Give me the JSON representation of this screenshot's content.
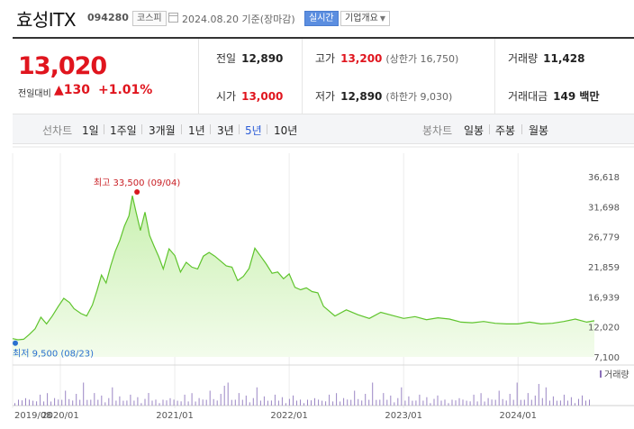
{
  "header": {
    "name": "효성ITX",
    "code": "094280",
    "market": "코스피",
    "date": "2024.08.20 기준(장마감)",
    "realtime": "실시간",
    "overview": "기업개요"
  },
  "price": {
    "current": "13,020",
    "change_label": "전일대비",
    "change": "▲130",
    "change_pct": "+1.01%"
  },
  "stats": {
    "prev_label": "전일",
    "prev": "12,890",
    "high_label": "고가",
    "high": "13,200",
    "upper_limit": "(상한가 16,750)",
    "volume_label": "거래량",
    "volume": "11,428",
    "open_label": "시가",
    "open": "13,000",
    "low_label": "저가",
    "low": "12,890",
    "lower_limit": "(하한가 9,030)",
    "amount_label": "거래대금",
    "amount": "149 백만"
  },
  "period_bar": {
    "line_label": "선차트",
    "periods": [
      "1일",
      "1주일",
      "3개월",
      "1년",
      "3년",
      "5년",
      "10년"
    ],
    "active_period": "5년",
    "candle_label": "봉차트",
    "candle_periods": [
      "일봉",
      "주봉",
      "월봉"
    ]
  },
  "chart_data": {
    "type": "area",
    "y_ticks": [
      "36,618",
      "31,698",
      "26,779",
      "21,859",
      "16,939",
      "12,020",
      "7,100"
    ],
    "ylim": [
      7100,
      36618
    ],
    "x_ticks": [
      "2019/08",
      "2020/01",
      "2021/01",
      "2022/01",
      "2023/01",
      "2024/01"
    ],
    "x_tick_years": [
      2019.583,
      2020.0,
      2021.0,
      2022.0,
      2023.0,
      2024.0
    ],
    "xlim": [
      2019.583,
      2024.667
    ],
    "max_label": "최고 33,500 (09/04)",
    "min_label": "최저 9,500 (08/23)",
    "max_point": {
      "x": 2020.67,
      "y": 33500
    },
    "min_point": {
      "x": 2019.64,
      "y": 9500
    },
    "volume_label": "거래량",
    "series": [
      {
        "x": [
          2019.583,
          2019.63,
          2019.68,
          2019.73,
          2019.78,
          2019.83,
          2019.88,
          2019.93,
          2019.98,
          2020.03,
          2020.08,
          2020.12,
          2020.18,
          2020.23,
          2020.28,
          2020.32,
          2020.36,
          2020.4,
          2020.44,
          2020.48,
          2020.52,
          2020.56,
          2020.6,
          2020.63,
          2020.66,
          2020.7,
          2020.74,
          2020.78,
          2020.82,
          2020.86,
          2020.9,
          2020.95,
          2021.0,
          2021.05,
          2021.1,
          2021.15,
          2021.2,
          2021.25,
          2021.3,
          2021.35,
          2021.4,
          2021.45,
          2021.5,
          2021.55,
          2021.6,
          2021.65,
          2021.7,
          2021.75,
          2021.8,
          2021.85,
          2021.9,
          2021.95,
          2022.0,
          2022.05,
          2022.1,
          2022.15,
          2022.2,
          2022.25,
          2022.3,
          2022.4,
          2022.5,
          2022.6,
          2022.7,
          2022.8,
          2022.9,
          2023.0,
          2023.1,
          2023.2,
          2023.3,
          2023.4,
          2023.5,
          2023.6,
          2023.7,
          2023.8,
          2023.9,
          2024.0,
          2024.1,
          2024.2,
          2024.3,
          2024.4,
          2024.5,
          2024.6,
          2024.667
        ],
        "values": [
          10100,
          9900,
          10000,
          10800,
          11700,
          13600,
          12500,
          13800,
          15300,
          16700,
          16000,
          15000,
          14200,
          13800,
          15600,
          17900,
          20500,
          19200,
          22000,
          24400,
          26200,
          28500,
          30200,
          33500,
          31000,
          27800,
          30800,
          27000,
          25200,
          23500,
          21500,
          24800,
          23700,
          21000,
          22600,
          21800,
          21500,
          23600,
          24200,
          23600,
          22800,
          22000,
          21800,
          19600,
          20300,
          21600,
          24900,
          23600,
          22300,
          20800,
          21000,
          19900,
          20700,
          18500,
          18100,
          18400,
          17800,
          17600,
          15400,
          13800,
          14800,
          14000,
          13400,
          14400,
          13900,
          13400,
          13700,
          13200,
          13500,
          13300,
          12800,
          12700,
          12900,
          12600,
          12500,
          12500,
          12800,
          12500,
          12600,
          12900,
          13300,
          12800,
          13020
        ]
      }
    ]
  }
}
